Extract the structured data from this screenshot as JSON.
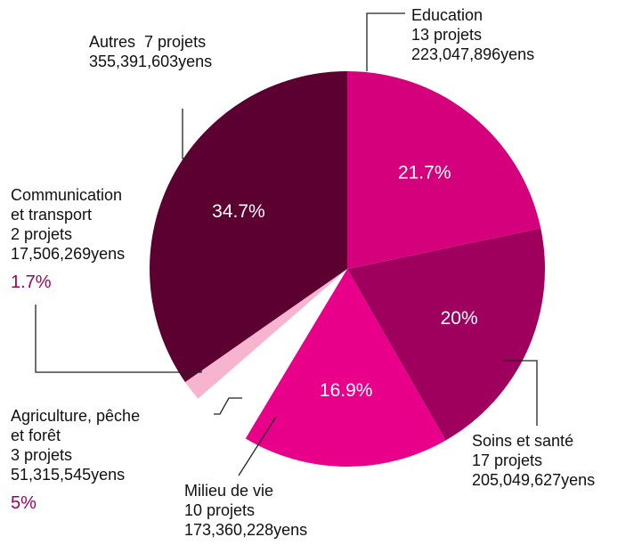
{
  "chart_data": {
    "type": "pie",
    "categories": [
      "Education",
      "Soins et santé",
      "Milieu de vie",
      "Agriculture, pêche\net forêt",
      "Communication\net transport",
      "Autres"
    ],
    "projects": [
      "13 projets",
      "17 projets",
      "10 projets",
      "3 projets",
      "2 projets",
      "7 projets"
    ],
    "amounts": [
      "223,047,896yens",
      "205,049,627yens",
      "173,360,228yens",
      "51,315,545yens",
      "17,506,269yens",
      "355,391,603yens"
    ],
    "values": [
      21.7,
      20,
      16.9,
      5,
      1.7,
      34.7
    ],
    "value_labels": [
      "21.7%",
      "20%",
      "16.9%",
      "5%",
      "1.7%",
      "34.7%"
    ],
    "colors": [
      "#d4007c",
      "#a0005d",
      "#e8008a",
      "#ffffff",
      "#f6b4cf",
      "#5c0031"
    ]
  }
}
